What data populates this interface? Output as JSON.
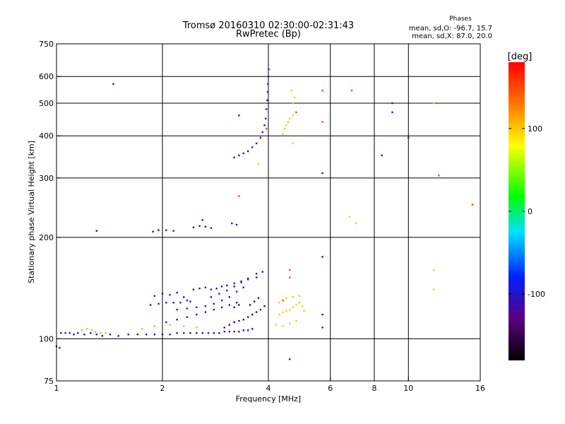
{
  "chart_data": {
    "type": "scatter",
    "title": "Tromsø 20160310 02:30:00-02:31:43",
    "subtitle": "RwPretec (Bp)",
    "xlabel": "Frequency [MHz]",
    "ylabel": "Stationary phase Virtual Height [km]",
    "x_scale": "log",
    "y_scale": "log",
    "xlim": [
      1,
      16
    ],
    "ylim": [
      75,
      750
    ],
    "x_ticks": [
      1,
      2,
      4,
      6,
      8,
      10,
      16
    ],
    "x_tick_labels": [
      "1",
      "2",
      "4",
      "6",
      "8",
      "10",
      "16"
    ],
    "y_ticks": [
      75,
      100,
      200,
      300,
      400,
      500,
      600,
      750
    ],
    "y_tick_labels": [
      "75",
      "100",
      "200",
      "300",
      "400",
      "500",
      "600",
      "750"
    ],
    "grid": true,
    "stats": {
      "heading": "Phases",
      "line1": "mean, sd,O: -96.7, 15.7",
      "line2": "mean, sd,X:  87.0, 20.0"
    },
    "colorbar": {
      "label": "[deg]",
      "range": [
        -180,
        180
      ],
      "ticks": [
        100,
        0,
        -100
      ],
      "tick_labels": [
        "100",
        "0",
        "-100"
      ]
    },
    "series": [
      {
        "phase_deg": -105,
        "points": [
          [
            1.03,
            104
          ],
          [
            1.06,
            104
          ],
          [
            1.09,
            104
          ],
          [
            1.12,
            103
          ],
          [
            1.15,
            104
          ],
          [
            1.2,
            103
          ],
          [
            1.25,
            104
          ],
          [
            1.3,
            103
          ],
          [
            1.35,
            102
          ],
          [
            1.42,
            103
          ],
          [
            1.5,
            102
          ],
          [
            1.6,
            103
          ],
          [
            1.7,
            103
          ],
          [
            1.8,
            103
          ],
          [
            1.9,
            103
          ],
          [
            2.0,
            103
          ],
          [
            2.1,
            103
          ],
          [
            2.2,
            104
          ],
          [
            2.3,
            104
          ],
          [
            2.4,
            104
          ],
          [
            2.5,
            104
          ],
          [
            2.6,
            104
          ],
          [
            2.7,
            104
          ],
          [
            2.8,
            104
          ],
          [
            2.9,
            104
          ],
          [
            3.0,
            105
          ],
          [
            3.1,
            105
          ],
          [
            3.2,
            105
          ],
          [
            3.3,
            105
          ],
          [
            3.4,
            106
          ],
          [
            3.5,
            106
          ],
          [
            3.6,
            107
          ],
          [
            1.85,
            126
          ],
          [
            1.95,
            127
          ],
          [
            2.05,
            128
          ],
          [
            2.15,
            128
          ],
          [
            2.25,
            128
          ],
          [
            2.35,
            130
          ],
          [
            1.9,
            134
          ],
          [
            2.0,
            136
          ],
          [
            2.1,
            135
          ],
          [
            2.2,
            137
          ],
          [
            2.3,
            133
          ],
          [
            2.45,
            140
          ],
          [
            2.55,
            141
          ],
          [
            2.65,
            142
          ],
          [
            2.75,
            140
          ],
          [
            2.85,
            141
          ],
          [
            2.95,
            143
          ],
          [
            3.05,
            144
          ],
          [
            3.2,
            146
          ],
          [
            3.35,
            148
          ],
          [
            3.5,
            150
          ],
          [
            3.7,
            152
          ],
          [
            2.05,
            112
          ],
          [
            2.2,
            114
          ],
          [
            2.35,
            116
          ],
          [
            2.5,
            118
          ],
          [
            2.65,
            120
          ],
          [
            2.8,
            122
          ],
          [
            2.95,
            124
          ],
          [
            3.1,
            126
          ],
          [
            3.25,
            128
          ],
          [
            1.88,
            208
          ],
          [
            1.95,
            210
          ],
          [
            2.05,
            210
          ],
          [
            2.15,
            209
          ],
          [
            2.45,
            214
          ],
          [
            2.55,
            216
          ],
          [
            2.65,
            215
          ],
          [
            2.75,
            213
          ],
          [
            3.15,
            220
          ],
          [
            3.25,
            218
          ],
          [
            2.6,
            225
          ],
          [
            1.3,
            209
          ],
          [
            1.45,
            570
          ],
          [
            3.2,
            345
          ],
          [
            3.3,
            350
          ],
          [
            3.4,
            355
          ],
          [
            3.5,
            360
          ],
          [
            3.6,
            370
          ],
          [
            3.7,
            380
          ],
          [
            3.8,
            395
          ],
          [
            3.85,
            410
          ],
          [
            3.9,
            430
          ],
          [
            3.93,
            450
          ],
          [
            3.95,
            480
          ],
          [
            3.97,
            510
          ],
          [
            3.98,
            540
          ],
          [
            3.99,
            570
          ],
          [
            4.0,
            600
          ],
          [
            4.01,
            630
          ],
          [
            3.3,
            460
          ],
          [
            1.0,
            95
          ],
          [
            1.02,
            94
          ]
        ]
      },
      {
        "phase_deg": -80,
        "points": [
          [
            2.2,
            122
          ],
          [
            2.35,
            123
          ],
          [
            2.5,
            124
          ],
          [
            2.65,
            125
          ],
          [
            2.8,
            127
          ],
          [
            2.95,
            130
          ],
          [
            3.1,
            133
          ],
          [
            3.25,
            138
          ],
          [
            3.4,
            142
          ],
          [
            2.75,
            133
          ],
          [
            2.9,
            136
          ],
          [
            3.05,
            139
          ],
          [
            3.2,
            143
          ],
          [
            3.35,
            147
          ],
          [
            3.5,
            151
          ],
          [
            3.7,
            156
          ],
          [
            3.85,
            158
          ],
          [
            2.4,
            129
          ],
          [
            4.6,
            87
          ],
          [
            5.7,
            108
          ],
          [
            5.7,
            118
          ],
          [
            5.7,
            175
          ],
          [
            5.7,
            310
          ],
          [
            8.4,
            350
          ],
          [
            10.0,
            395
          ],
          [
            9.0,
            500
          ],
          [
            9.0,
            470
          ]
        ]
      },
      {
        "phase_deg": -140,
        "points": [
          [
            3.0,
            108
          ],
          [
            3.1,
            110
          ],
          [
            3.2,
            112
          ],
          [
            3.3,
            113
          ],
          [
            3.4,
            114
          ],
          [
            3.5,
            116
          ],
          [
            3.6,
            118
          ],
          [
            3.7,
            120
          ],
          [
            3.8,
            122
          ],
          [
            3.9,
            125
          ],
          [
            3.55,
            126
          ],
          [
            3.65,
            129
          ],
          [
            3.75,
            132
          ],
          [
            3.2,
            124
          ],
          [
            3.3,
            126
          ]
        ]
      },
      {
        "phase_deg": 45,
        "points": [
          [
            1.18,
            106
          ],
          [
            1.22,
            107
          ],
          [
            1.26,
            106
          ],
          [
            1.29,
            105
          ],
          [
            1.33,
            104
          ],
          [
            1.38,
            104
          ],
          [
            1.75,
            107
          ],
          [
            1.9,
            109
          ],
          [
            2.1,
            110
          ],
          [
            2.3,
            109
          ],
          [
            2.5,
            108
          ]
        ]
      },
      {
        "phase_deg": 100,
        "points": [
          [
            4.3,
            118
          ],
          [
            4.4,
            120
          ],
          [
            4.5,
            121
          ],
          [
            4.6,
            122
          ],
          [
            4.7,
            124
          ],
          [
            4.8,
            126
          ],
          [
            4.9,
            128
          ],
          [
            5.0,
            125
          ],
          [
            5.05,
            121
          ],
          [
            4.2,
            110
          ],
          [
            4.4,
            109
          ],
          [
            4.6,
            111
          ],
          [
            4.8,
            113
          ],
          [
            4.3,
            128
          ],
          [
            4.5,
            132
          ],
          [
            4.7,
            133
          ],
          [
            4.9,
            134
          ],
          [
            4.4,
            405
          ],
          [
            4.45,
            420
          ],
          [
            4.5,
            430
          ],
          [
            4.55,
            440
          ],
          [
            4.6,
            450
          ],
          [
            4.7,
            460
          ],
          [
            4.7,
            500
          ],
          [
            4.75,
            520
          ],
          [
            4.65,
            545
          ],
          [
            4.7,
            380
          ],
          [
            3.75,
            330
          ],
          [
            6.8,
            230
          ],
          [
            7.1,
            220
          ],
          [
            11.8,
            140
          ],
          [
            11.8,
            160
          ],
          [
            11.8,
            500
          ]
        ]
      },
      {
        "phase_deg": 150,
        "points": [
          [
            3.3,
            265
          ],
          [
            3.95,
            420
          ],
          [
            4.4,
            130
          ],
          [
            4.6,
            152
          ],
          [
            4.6,
            160
          ],
          [
            5.7,
            440
          ],
          [
            5.7,
            545
          ],
          [
            6.9,
            545
          ],
          [
            15.2,
            250
          ],
          [
            12.2,
            305
          ],
          [
            4.8,
            470
          ]
        ]
      }
    ]
  }
}
